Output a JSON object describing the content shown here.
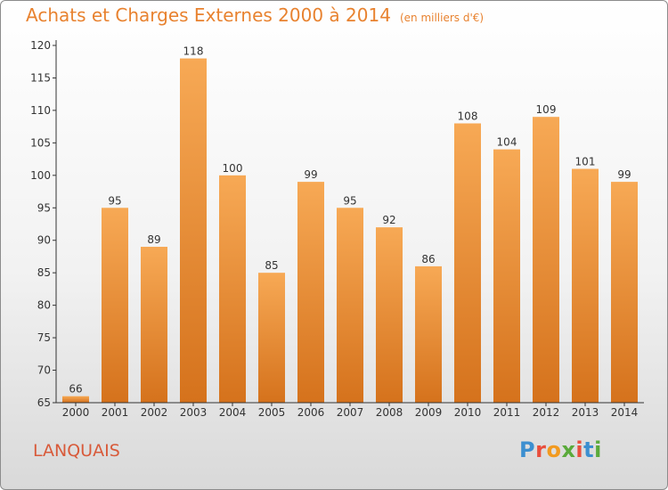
{
  "title": "Achats et Charges Externes 2000 à 2014",
  "unit": "(en milliers d'€)",
  "commune": "LANQUAIS",
  "brand": {
    "letters": [
      "P",
      "r",
      "o",
      "x",
      "i",
      "t",
      "i"
    ],
    "colors": [
      "#3c8fd0",
      "#e94e3c",
      "#f29a1f",
      "#5aaa3a",
      "#e94e3c",
      "#3c8fd0",
      "#5aaa3a"
    ]
  },
  "colors": {
    "bar_top": "#f7a955",
    "bar_bottom": "#d5721c",
    "accent": "#e8822f"
  },
  "chart_data": {
    "type": "bar",
    "title": "Achats et Charges Externes 2000 à 2014",
    "subtitle": "(en milliers d'€)",
    "categories": [
      "2000",
      "2001",
      "2002",
      "2003",
      "2004",
      "2005",
      "2006",
      "2007",
      "2008",
      "2009",
      "2010",
      "2011",
      "2012",
      "2013",
      "2014"
    ],
    "values": [
      66,
      95,
      89,
      118,
      100,
      85,
      99,
      95,
      92,
      86,
      108,
      104,
      109,
      101,
      99
    ],
    "ylim": [
      65,
      120
    ],
    "yticks": [
      65,
      70,
      75,
      80,
      85,
      90,
      95,
      100,
      105,
      110,
      115,
      120
    ],
    "xlabel": "",
    "ylabel": "",
    "grid": false,
    "data_labels": true
  }
}
